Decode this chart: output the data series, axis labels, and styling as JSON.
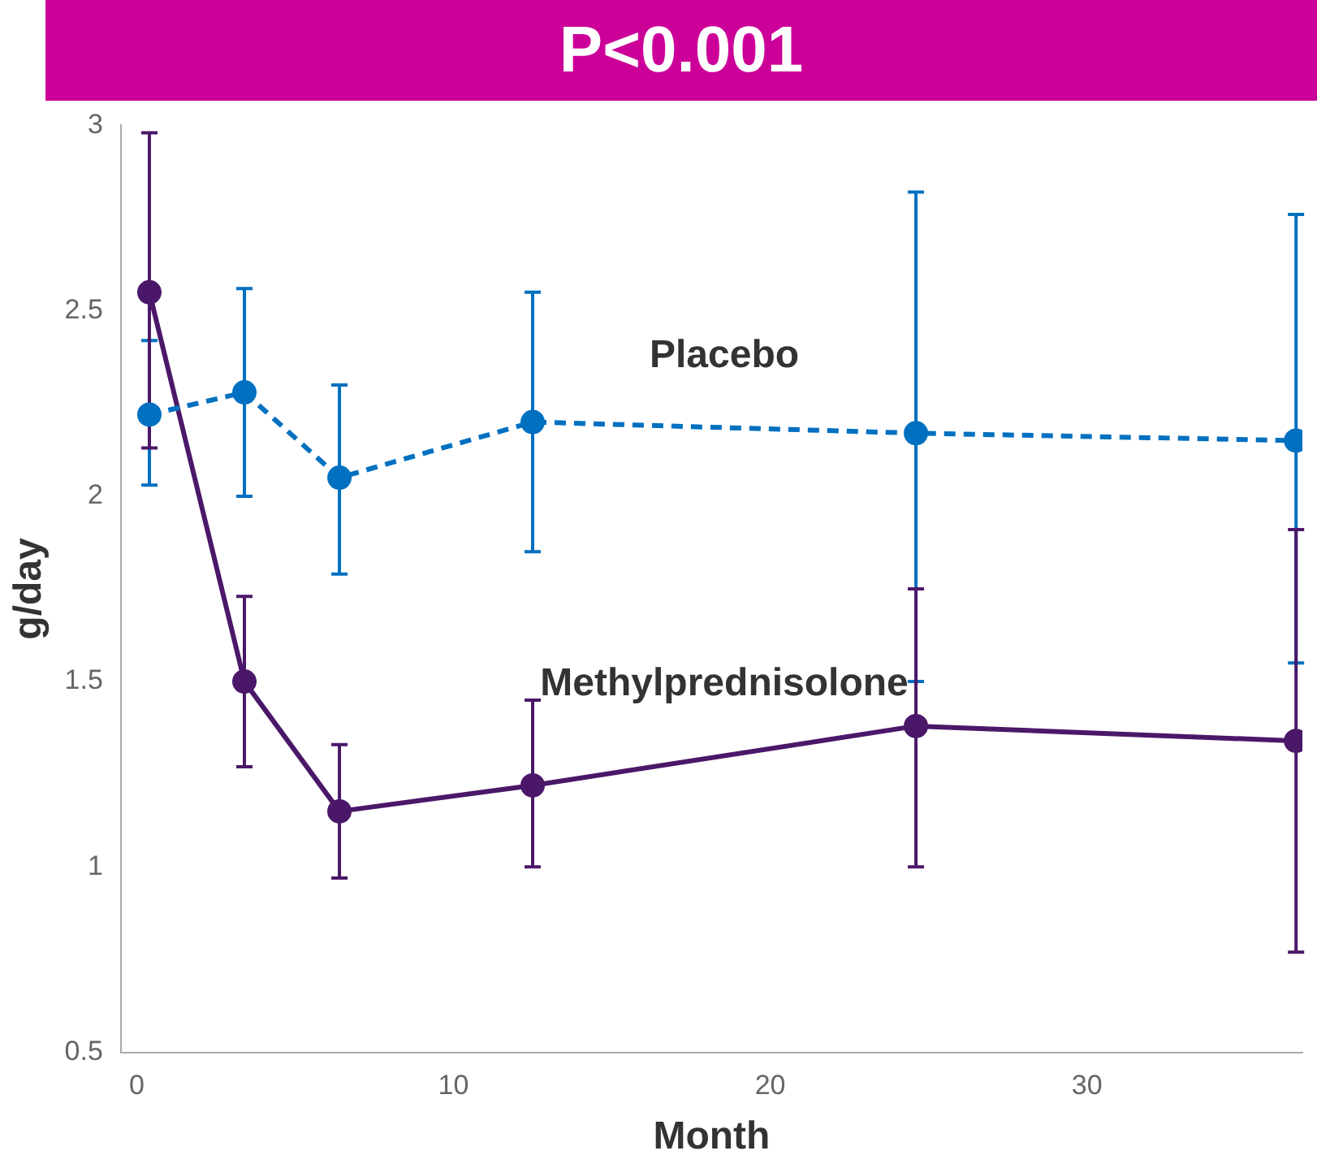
{
  "chart_data": {
    "type": "line",
    "title": "P<0.001",
    "xlabel": "Month",
    "ylabel": "g/day",
    "xlim": [
      -0.5,
      36.8
    ],
    "xticks": [
      0,
      10,
      20,
      30
    ],
    "ylim": [
      0.5,
      3
    ],
    "yticks": [
      0.5,
      1,
      1.5,
      2,
      2.5,
      3
    ],
    "grid": false,
    "legend": false,
    "marker": "circle",
    "series": [
      {
        "name": "Placebo",
        "color": "#0070c0",
        "line_style": "dashed",
        "x": [
          0.4,
          3.4,
          6.4,
          12.5,
          24.6,
          36.6
        ],
        "values": [
          2.22,
          2.28,
          2.05,
          2.2,
          2.17,
          2.15
        ],
        "errors": [
          [
            2.03,
            2.42
          ],
          [
            2.0,
            2.56
          ],
          [
            1.79,
            2.3
          ],
          [
            1.85,
            2.55
          ],
          [
            1.5,
            2.82
          ],
          [
            1.55,
            2.76
          ]
        ]
      },
      {
        "name": "Methylprednisolone",
        "color": "#4b1869",
        "line_style": "solid",
        "x": [
          0.4,
          3.4,
          6.4,
          12.5,
          24.6,
          36.6
        ],
        "values": [
          2.55,
          1.5,
          1.15,
          1.22,
          1.38,
          1.34
        ],
        "errors": [
          [
            2.13,
            2.98
          ],
          [
            1.27,
            1.73
          ],
          [
            0.97,
            1.33
          ],
          [
            1.0,
            1.45
          ],
          [
            1.0,
            1.75
          ],
          [
            0.77,
            1.91
          ]
        ]
      }
    ]
  }
}
